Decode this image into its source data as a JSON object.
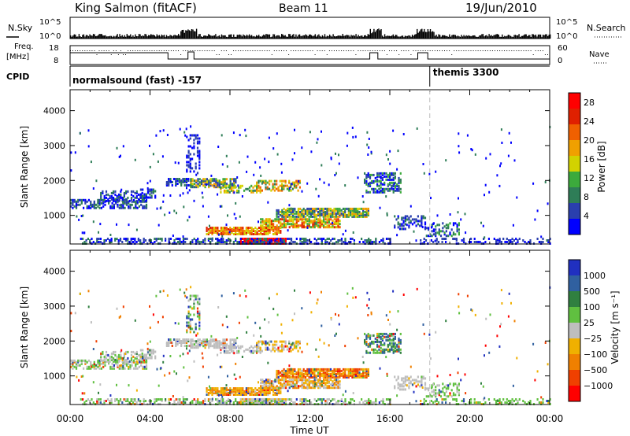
{
  "header": {
    "title": "King Salmon (fitACF)",
    "beam": "Beam 11",
    "date": "19/Jun/2010"
  },
  "strip_labels": {
    "nsky": "N.Sky",
    "freq_line1": "Freq.",
    "freq_line2": "[MHz]",
    "cpid": "CPID",
    "nsearch": "N.Search",
    "nave": "Nave",
    "nsky_ticks": [
      "10^5",
      "10^0"
    ],
    "nsearch_ticks": [
      "10^5",
      "10^0"
    ],
    "freq_ticks": [
      "18",
      "8"
    ],
    "nave_ticks": [
      "60",
      "0"
    ]
  },
  "cpid_segments": [
    {
      "label": "normalsound (fast) -157",
      "start_hour": 0
    },
    {
      "label": "themis 3300",
      "start_hour": 18
    }
  ],
  "colors": {
    "power": [
      "#0000ff",
      "#2a3fae",
      "#2e7d57",
      "#3caa3c",
      "#d2d200",
      "#f0a000",
      "#f06000",
      "#e02000",
      "#ff0000"
    ],
    "velocity": [
      "#2030c0",
      "#3060a0",
      "#308040",
      "#60c040",
      "#bebebe",
      "#f0b000",
      "#f08000",
      "#f04000",
      "#ff0000"
    ]
  },
  "chart_data": [
    {
      "type": "heatmap",
      "panel": "power",
      "ylabel": "Slant Range [km]",
      "xlabel": "Time UT",
      "ylim": [
        180,
        4600
      ],
      "xlim": [
        0,
        24
      ],
      "y_ticks": [
        "1000",
        "2000",
        "3000",
        "4000"
      ],
      "x_ticks": [
        "00:00",
        "04:00",
        "08:00",
        "12:00",
        "16:00",
        "20:00",
        "00:00"
      ],
      "colorbar_label": "Power [dB]",
      "colorbar_ticks": [
        "4",
        "8",
        "12",
        "16",
        "20",
        "24",
        "28"
      ],
      "colorbar_range": [
        0,
        30
      ]
    },
    {
      "type": "heatmap",
      "panel": "velocity",
      "ylabel": "Slant Range [km]",
      "xlabel": "Time UT",
      "ylim": [
        180,
        4600
      ],
      "xlim": [
        0,
        24
      ],
      "y_ticks": [
        "1000",
        "2000",
        "3000",
        "4000"
      ],
      "x_ticks": [
        "00:00",
        "04:00",
        "08:00",
        "12:00",
        "16:00",
        "20:00",
        "00:00"
      ],
      "colorbar_label": "Velocity [m s⁻¹]",
      "colorbar_ticks": [
        "1000",
        "500",
        "100",
        "25",
        "−25",
        "−100",
        "−500",
        "−1000"
      ]
    }
  ],
  "axis_title": "Time UT"
}
